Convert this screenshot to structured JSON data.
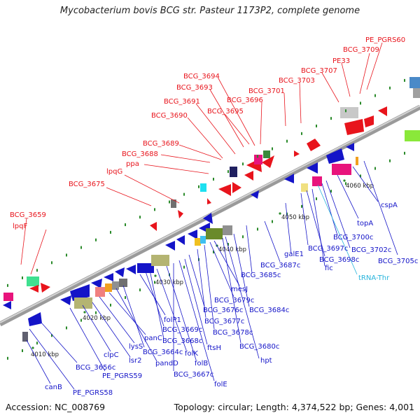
{
  "title": "Mycobacterium bovis BCG str. Pasteur 1173P2, complete genome",
  "footer": {
    "accession": "Accession: NC_008769",
    "summary": "Topology: circular; Length: 4,374,522 bp; Genes: 4,001"
  },
  "colors": {
    "label_upper": "#e8141c",
    "label_lower": "#1414c8",
    "label_rna": "#28b4dc",
    "backbone": "#808080"
  },
  "ticks": [
    "4010 kbp",
    "4020 kbp",
    "4030 kbp",
    "4040 kbp",
    "4050 kbp",
    "4060 kbp"
  ],
  "upper_labels": [
    "BCG_3659",
    "lpqF",
    "BCG_3675",
    "lpqG",
    "ppa",
    "BCG_3688",
    "BCG_3689",
    "BCG_3690",
    "BCG_3691",
    "BCG_3693",
    "BCG_3694",
    "BCG_3695",
    "BCG_3696",
    "BCG_3701",
    "BCG_3703",
    "BCG_3707",
    "PE33",
    "BCG_3709",
    "PE_PGRS60"
  ],
  "lower_labels": [
    "canB",
    "PE_PGRS58",
    "BCG_3656c",
    "PE_PGRS59",
    "clpC",
    "lsr2",
    "lysS",
    "panC",
    "pandD",
    "BCG_3664c",
    "folP1",
    "BCG_3669c",
    "BCG_3668c",
    "folK",
    "folB",
    "BCG_3667c",
    "folE",
    "ftsH",
    "BCG_3676c",
    "BCG_3677c",
    "BCG_3678c",
    "BCG_3679c",
    "mesJ",
    "BCG_3680c",
    "hpt",
    "BCG_3684c",
    "BCG_3685c",
    "BCG_3687c",
    "galE1",
    "BCG_3697c",
    "BCG_3698c",
    "fic",
    "BCG_3700c",
    "BCG_3702c",
    "topA",
    "cspA",
    "BCG_3705c"
  ],
  "rna_labels": [
    "tRNA-Thr"
  ]
}
